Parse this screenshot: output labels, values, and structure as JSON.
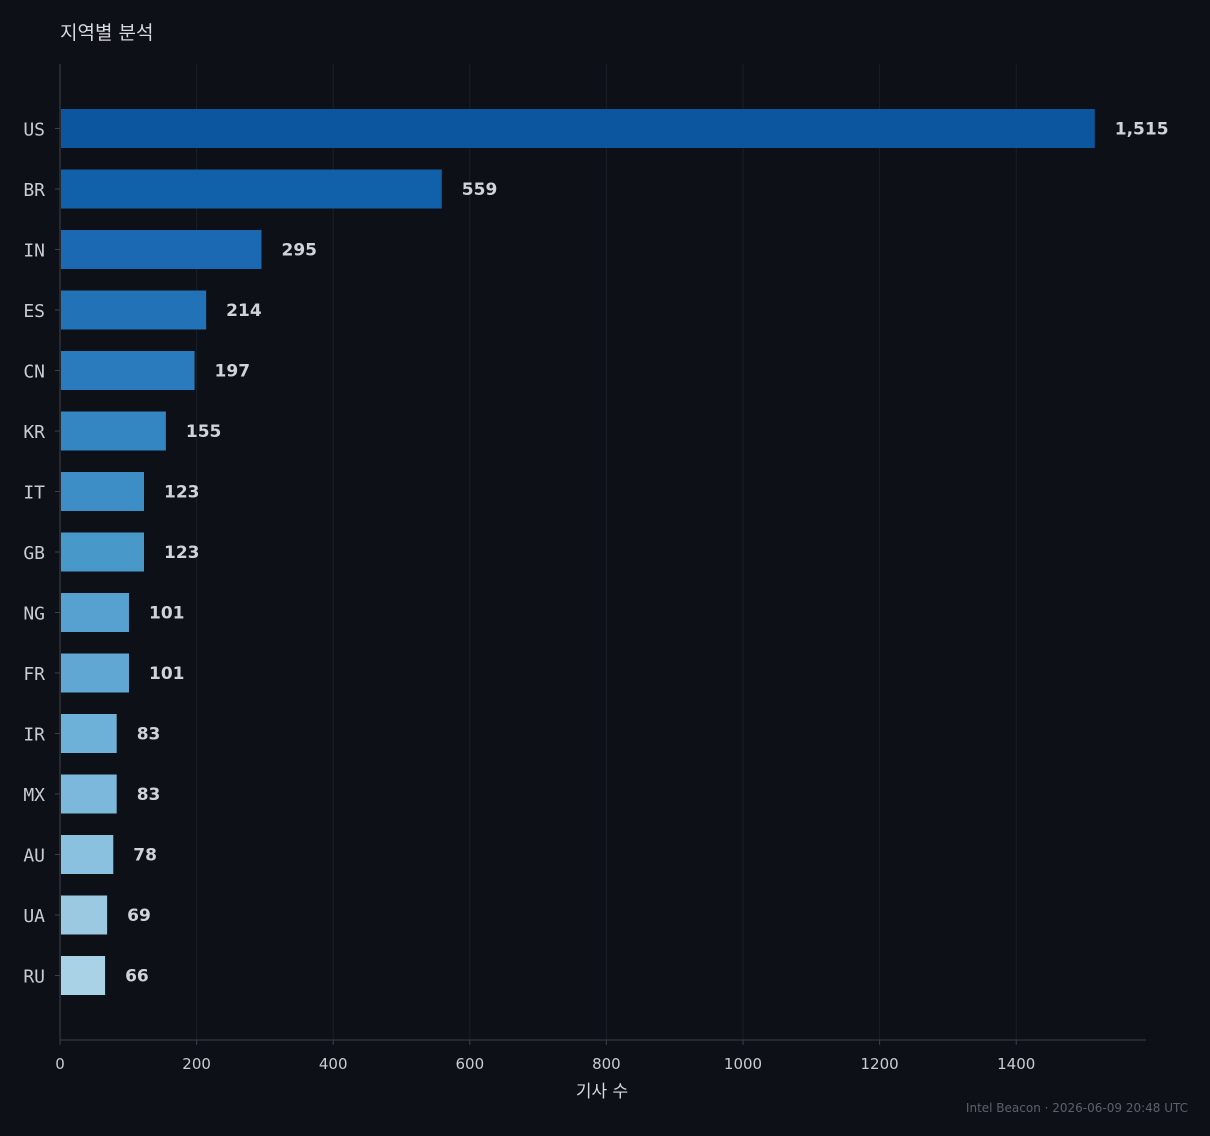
{
  "footer": "Intel Beacon · 2026-06-09 20:48 UTC",
  "chart_data": {
    "type": "bar",
    "orientation": "horizontal",
    "title": "지역별 분석",
    "xlabel": "기사 수",
    "ylabel": "",
    "categories": [
      "US",
      "BR",
      "IN",
      "ES",
      "CN",
      "KR",
      "IT",
      "GB",
      "NG",
      "FR",
      "IR",
      "MX",
      "AU",
      "UA",
      "RU"
    ],
    "values": [
      1515,
      559,
      295,
      214,
      197,
      155,
      123,
      123,
      101,
      101,
      83,
      83,
      78,
      69,
      66
    ],
    "value_labels": [
      "1,515",
      "559",
      "295",
      "214",
      "197",
      "155",
      "123",
      "123",
      "101",
      "101",
      "83",
      "83",
      "78",
      "69",
      "66"
    ],
    "colors": [
      "#0c56a0",
      "#1160aa",
      "#1b69b2",
      "#2172b7",
      "#2a7bbd",
      "#3386c2",
      "#3d8ec6",
      "#4898ca",
      "#56a1cf",
      "#60a8d3",
      "#6eb1d8",
      "#7cb8dc",
      "#8ac1df",
      "#9bc9e2",
      "#aad2e6"
    ],
    "xlim": [
      0,
      1590
    ],
    "xticks": [
      0,
      200,
      400,
      600,
      800,
      1000,
      1200,
      1400
    ],
    "grid": true
  }
}
